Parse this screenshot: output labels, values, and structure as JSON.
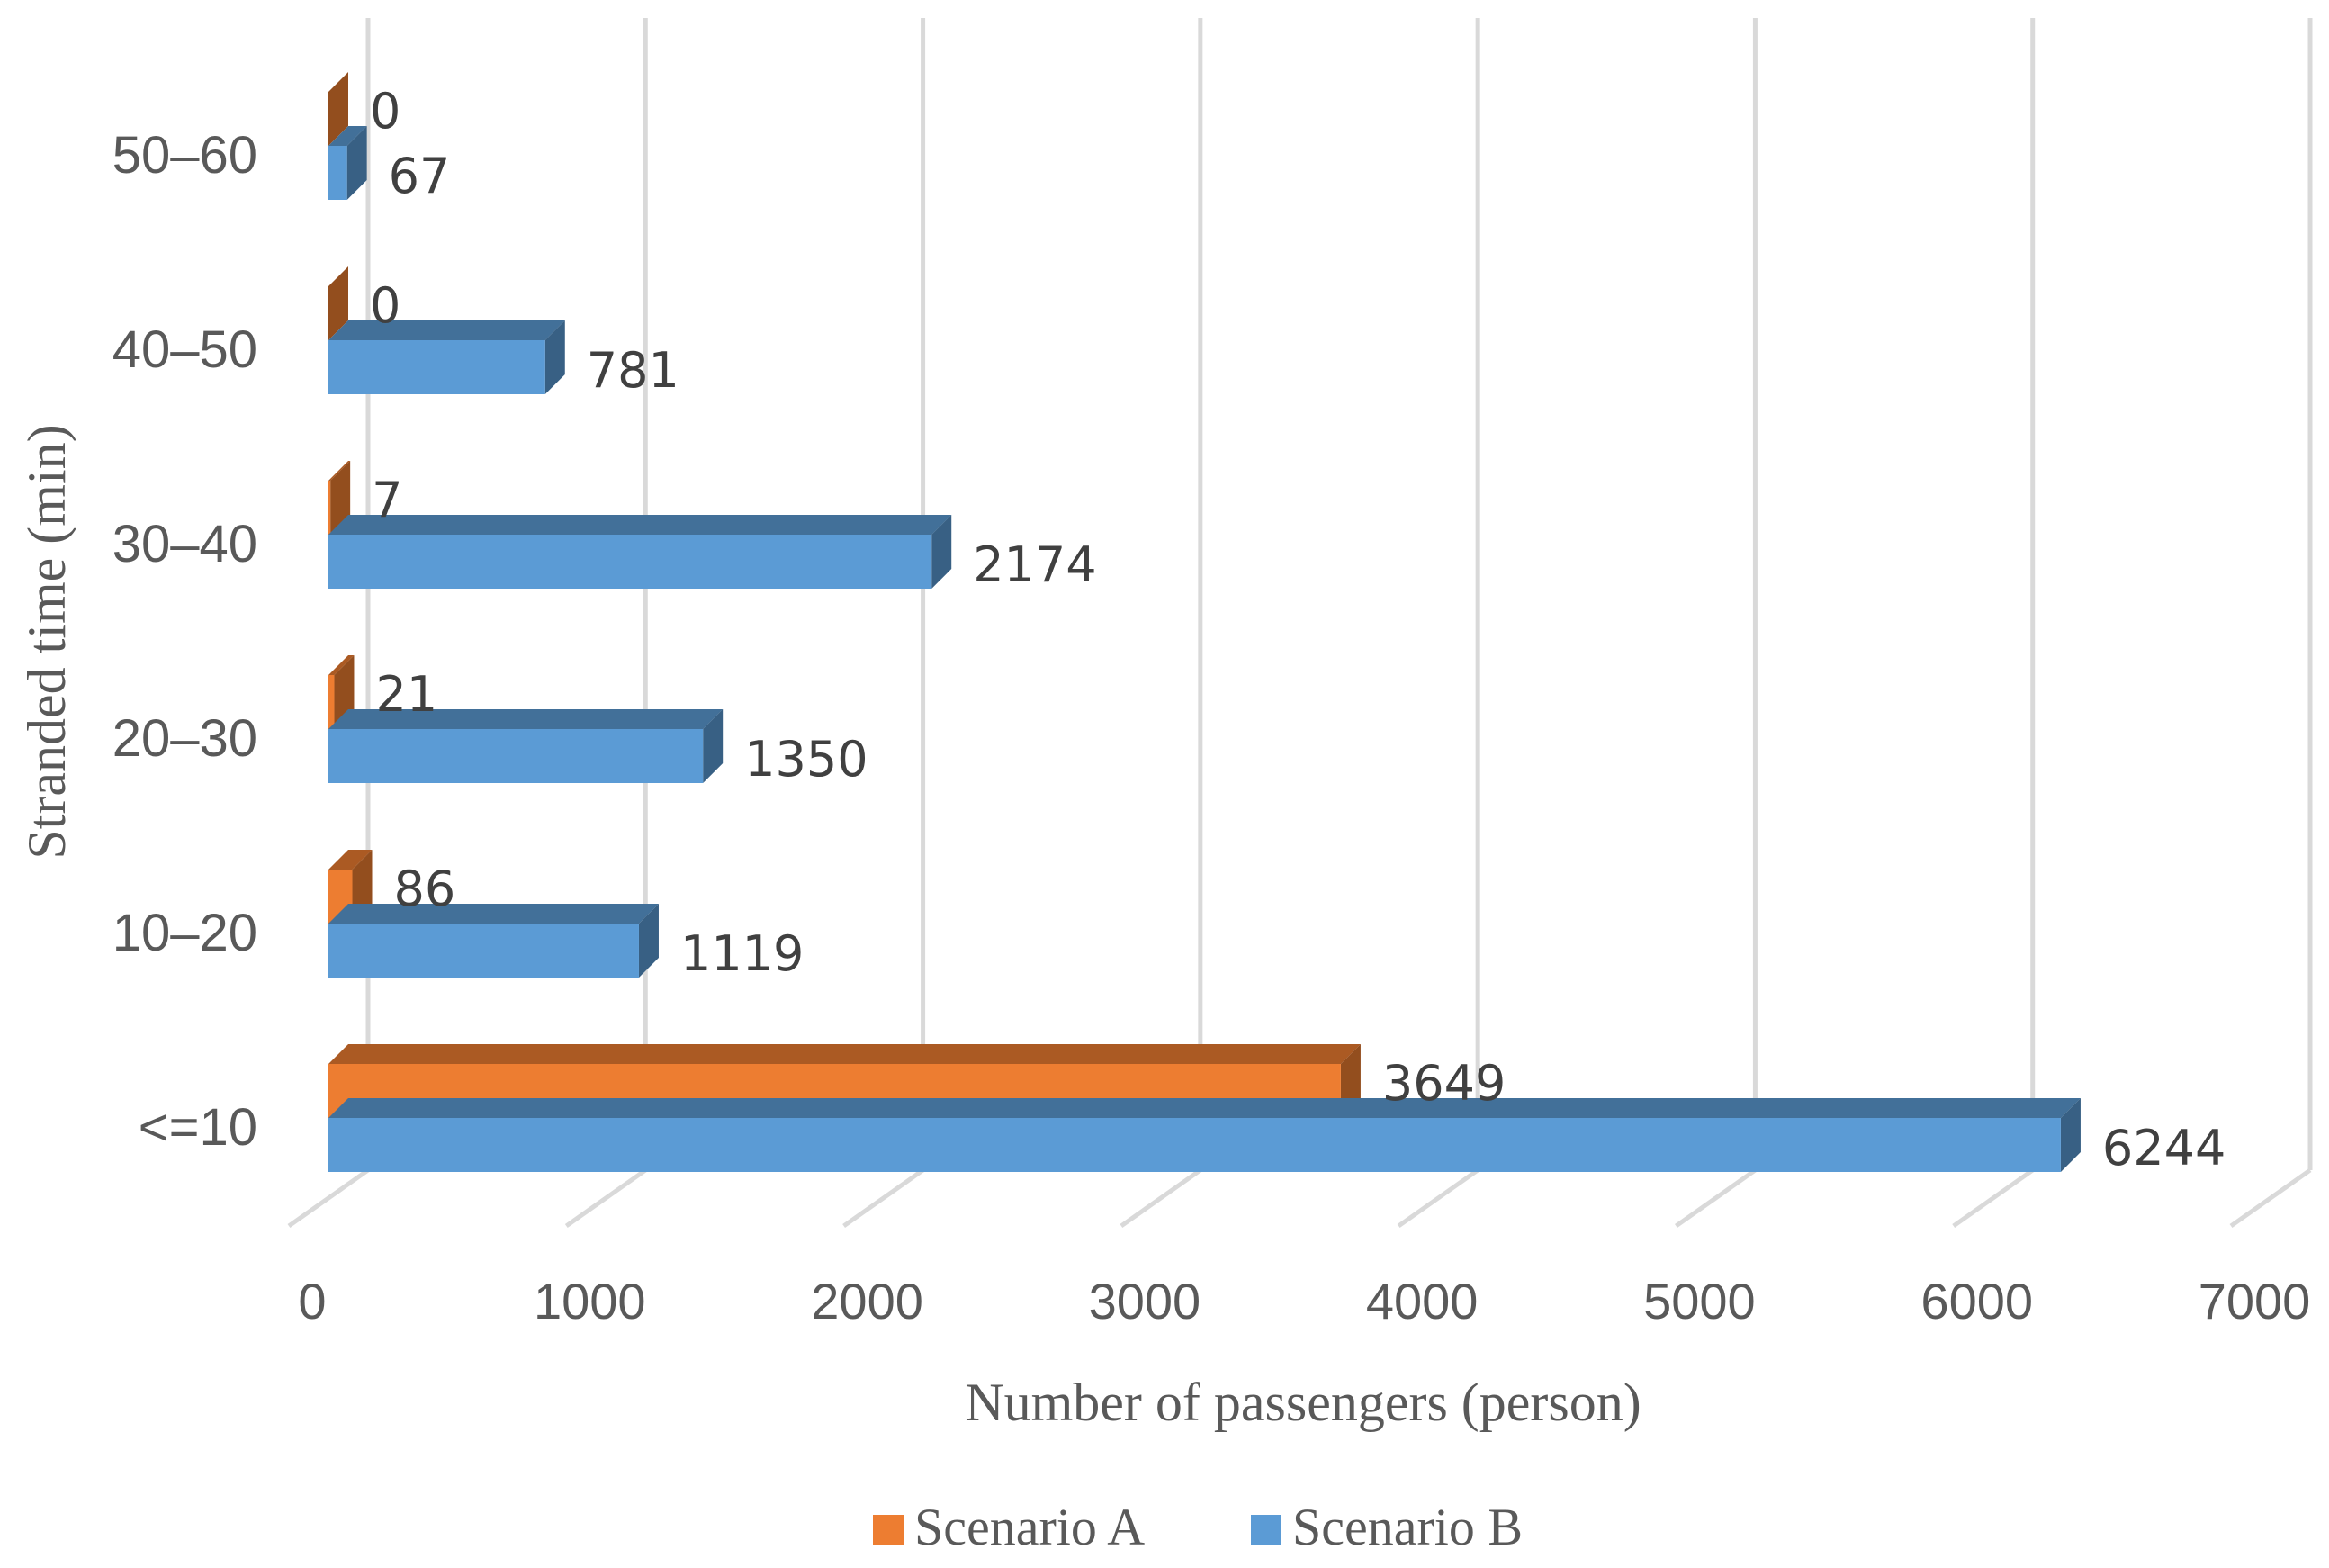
{
  "chart_data": {
    "type": "bar",
    "orientation": "horizontal",
    "style": "3d-clustered-bar",
    "categories": [
      "<=10",
      "10–20",
      "20–30",
      "30–40",
      "40–50",
      "50–60"
    ],
    "series": [
      {
        "name": "Scenario A",
        "color": "#ED7D31",
        "values": [
          3649,
          86,
          21,
          7,
          0,
          0
        ]
      },
      {
        "name": "Scenario B",
        "color": "#5B9BD5",
        "values": [
          6244,
          1119,
          1350,
          2174,
          781,
          67
        ]
      }
    ],
    "xlabel": "Number of passengers (person)",
    "ylabel": "Stranded time (min)",
    "xlim": [
      0,
      7000
    ],
    "xticks": [
      0,
      1000,
      2000,
      3000,
      4000,
      5000,
      6000,
      7000
    ],
    "grid": true,
    "data_labels": true,
    "legend_position": "bottom"
  }
}
